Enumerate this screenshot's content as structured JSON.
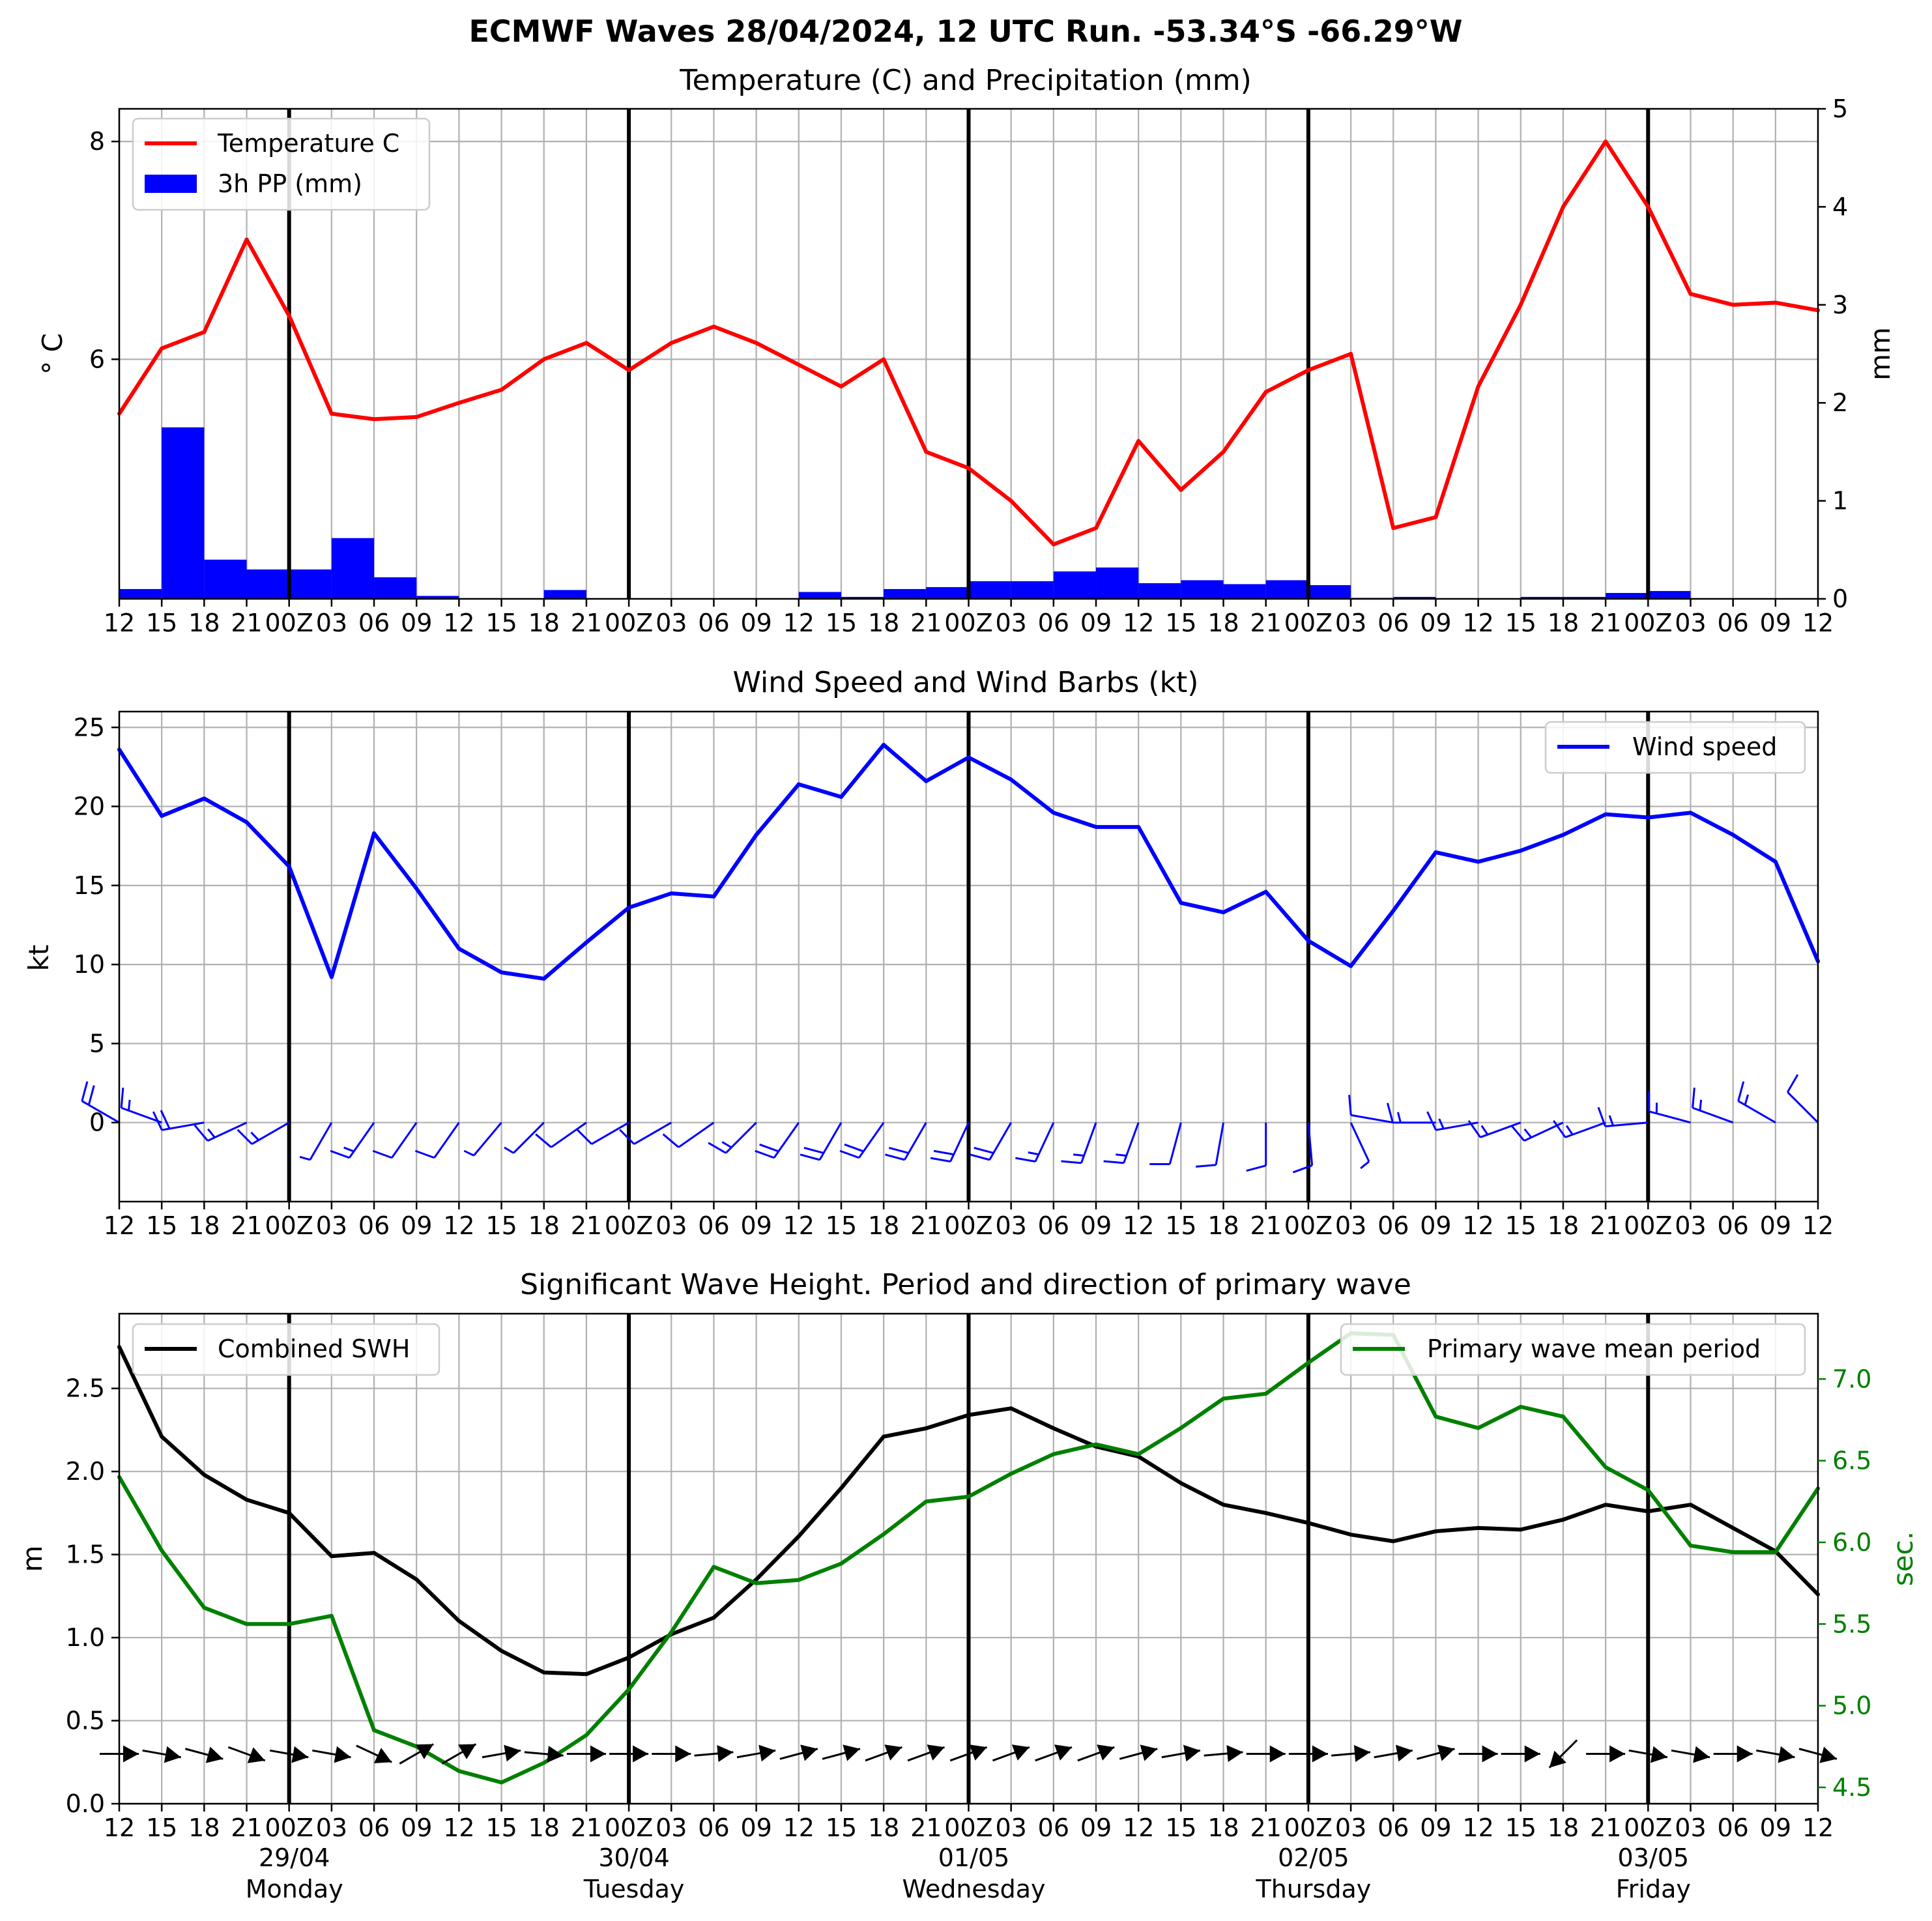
{
  "suptitle": "ECMWF Waves 28/04/2024, 12 UTC Run. -53.34°S -66.29°W",
  "colors": {
    "temperature": "#ff0000",
    "precip": "#0000ff",
    "wind": "#0000ff",
    "swh": "#000000",
    "period": "#008000",
    "grid": "#b0b0b0",
    "day_line": "#000000"
  },
  "time_axis": {
    "steps": 41,
    "step_hours": 3,
    "tick_labels": [
      "12",
      "15",
      "18",
      "21",
      "00Z",
      "03",
      "06",
      "09",
      "12",
      "15",
      "18",
      "21",
      "00Z",
      "03",
      "06",
      "09",
      "12",
      "15",
      "18",
      "21",
      "00Z",
      "03",
      "06",
      "09",
      "12",
      "15",
      "18",
      "21",
      "00Z",
      "03",
      "06",
      "09",
      "12",
      "15",
      "18",
      "21",
      "00Z",
      "03",
      "06",
      "09",
      "12"
    ],
    "day_boundaries": [
      4,
      12,
      20,
      28,
      36
    ],
    "days": [
      {
        "date": "29/04",
        "weekday": "Monday",
        "index": 4
      },
      {
        "date": "30/04",
        "weekday": "Tuesday",
        "index": 12
      },
      {
        "date": "01/05",
        "weekday": "Wednesday",
        "index": 20
      },
      {
        "date": "02/05",
        "weekday": "Thursday",
        "index": 28
      },
      {
        "date": "03/05",
        "weekday": "Friday",
        "index": 36
      }
    ]
  },
  "chart_data": [
    {
      "type": "line+bar",
      "title": "Temperature (C) and Precipitation (mm)",
      "ylabel": "$^\\circ$C",
      "ylabel_display": "° C",
      "y2label": "mm",
      "ylim": [
        3.8,
        8.3
      ],
      "y2lim": [
        0,
        5
      ],
      "yticks": [
        6,
        8
      ],
      "y2ticks": [
        0,
        1,
        2,
        3,
        4,
        5
      ],
      "legend_placement": "upper-left",
      "grid": true,
      "series": [
        {
          "name": "Temperature C",
          "kind": "line",
          "axis": "left",
          "values": [
            5.5,
            6.1,
            6.25,
            7.1,
            6.4,
            5.5,
            5.45,
            5.47,
            5.6,
            5.72,
            6.0,
            6.15,
            5.9,
            6.15,
            6.3,
            6.15,
            5.95,
            5.75,
            6.0,
            5.15,
            5.0,
            4.7,
            4.3,
            4.45,
            5.25,
            4.8,
            5.15,
            5.7,
            5.9,
            6.05,
            4.45,
            4.55,
            5.75,
            6.5,
            7.4,
            8.0,
            7.4,
            6.6,
            6.5,
            6.52,
            6.45
          ]
        },
        {
          "name": "3h PP (mm)",
          "kind": "bar",
          "axis": "right",
          "values": [
            0.1,
            1.75,
            0.4,
            0.3,
            0.3,
            0.62,
            0.22,
            0.03,
            0,
            0,
            0.09,
            0,
            0,
            0,
            0,
            0,
            0.07,
            0.02,
            0.1,
            0.12,
            0.18,
            0.18,
            0.28,
            0.32,
            0.16,
            0.19,
            0.15,
            0.19,
            0.14,
            0.01,
            0.02,
            0,
            0,
            0.02,
            0.02,
            0.06,
            0.08,
            0,
            0,
            0,
            0
          ]
        }
      ]
    },
    {
      "type": "line",
      "title": "Wind Speed and Wind Barbs (kt)",
      "ylabel": "kt",
      "ylim": [
        -5,
        26
      ],
      "yticks": [
        0,
        5,
        10,
        15,
        20,
        25
      ],
      "legend_placement": "upper-right",
      "grid": true,
      "series": [
        {
          "name": "Wind speed",
          "values": [
            23.6,
            19.4,
            20.5,
            19.0,
            16.2,
            9.2,
            18.3,
            14.8,
            11.0,
            9.5,
            9.1,
            11.4,
            13.6,
            14.5,
            14.3,
            18.2,
            21.4,
            20.6,
            23.9,
            21.6,
            23.1,
            21.7,
            19.6,
            18.7,
            18.7,
            13.9,
            13.3,
            14.6,
            11.5,
            9.9,
            13.4,
            17.1,
            16.5,
            17.2,
            18.2,
            19.5,
            19.3,
            19.6,
            18.2,
            16.5,
            10.2
          ]
        }
      ],
      "barbs_from_deg": [
        300,
        290,
        260,
        245,
        240,
        210,
        215,
        215,
        215,
        220,
        225,
        235,
        240,
        240,
        235,
        225,
        215,
        210,
        215,
        210,
        205,
        210,
        205,
        200,
        200,
        195,
        190,
        180,
        175,
        155,
        280,
        270,
        260,
        250,
        245,
        250,
        265,
        285,
        290,
        300,
        315
      ]
    },
    {
      "type": "line",
      "title": "Significant Wave Height. Period and direction of primary wave",
      "ylabel": "m",
      "y2label": "sec.",
      "ylim": [
        0,
        2.95
      ],
      "y2lim": [
        4.4,
        7.4
      ],
      "yticks": [
        0.0,
        0.5,
        1.0,
        1.5,
        2.0,
        2.5
      ],
      "y2ticks": [
        4.5,
        5.0,
        5.5,
        6.0,
        6.5,
        7.0
      ],
      "legend_placement": [
        "upper-left",
        "upper-right"
      ],
      "grid": true,
      "series": [
        {
          "name": "Combined SWH",
          "axis": "left",
          "values": [
            2.75,
            2.21,
            1.98,
            1.83,
            1.75,
            1.49,
            1.51,
            1.35,
            1.1,
            0.92,
            0.79,
            0.78,
            0.88,
            1.02,
            1.12,
            1.35,
            1.61,
            1.9,
            2.21,
            2.26,
            2.34,
            2.38,
            2.26,
            2.15,
            2.09,
            1.93,
            1.8,
            1.75,
            1.69,
            1.62,
            1.58,
            1.64,
            1.66,
            1.65,
            1.71,
            1.8,
            1.76,
            1.8,
            1.66,
            1.52,
            1.26
          ]
        },
        {
          "name": "Primary wave mean period",
          "axis": "right",
          "values": [
            6.4,
            5.95,
            5.6,
            5.5,
            5.5,
            5.55,
            4.85,
            4.75,
            4.6,
            4.53,
            4.65,
            4.82,
            5.1,
            5.45,
            5.85,
            5.75,
            5.77,
            5.87,
            6.05,
            6.25,
            6.28,
            6.42,
            6.54,
            6.6,
            6.54,
            6.7,
            6.88,
            6.91,
            7.1,
            7.28,
            7.27,
            6.77,
            6.7,
            6.83,
            6.77,
            6.46,
            6.32,
            5.98,
            5.94,
            5.94,
            6.33
          ]
        }
      ],
      "arrow_to_deg": [
        90,
        100,
        105,
        110,
        100,
        100,
        115,
        60,
        60,
        80,
        95,
        90,
        90,
        90,
        85,
        80,
        75,
        75,
        70,
        70,
        70,
        70,
        70,
        70,
        75,
        80,
        85,
        90,
        90,
        85,
        80,
        75,
        90,
        90,
        225,
        90,
        100,
        100,
        90,
        100,
        105
      ]
    }
  ]
}
